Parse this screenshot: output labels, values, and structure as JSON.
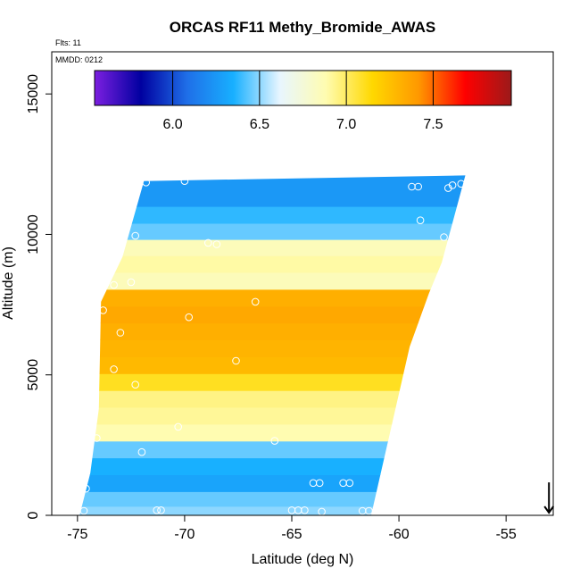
{
  "chart_data": {
    "type": "heatmap",
    "title": "ORCAS RF11 Methy_Bromide_AWAS",
    "annotations": {
      "flights": "Flts: 11",
      "date": "MMDD: 0212"
    },
    "xlabel": "Latitude (deg N)",
    "ylabel": "Altitude (m)",
    "xlim": [
      -76.2,
      -52.8
    ],
    "ylim": [
      0,
      16500
    ],
    "x_ticks": [
      -75,
      -70,
      -65,
      -60,
      -55
    ],
    "x_tick_labels": [
      "-75",
      "-70",
      "-65",
      "-60",
      "-55"
    ],
    "y_ticks": [
      0,
      5000,
      10000,
      15000
    ],
    "y_tick_labels": [
      "0",
      "5000",
      "10000",
      "15000"
    ],
    "colorbar": {
      "min": 5.55,
      "max": 7.95,
      "ticks": [
        6.0,
        6.5,
        7.0,
        7.5
      ],
      "tick_labels": [
        "6.0",
        "6.5",
        "7.0",
        "7.5"
      ],
      "colors": [
        "#7c1fe0",
        "#0000a0",
        "#1f6fe8",
        "#18b0ff",
        "#e8f6ff",
        "#fffcb0",
        "#ffd800",
        "#ff9800",
        "#ff0000",
        "#9c1a1a"
      ]
    },
    "domain_boundary": [
      [
        -74.9,
        0
      ],
      [
        -74.4,
        1500
      ],
      [
        -74.0,
        3800
      ],
      [
        -73.9,
        7600
      ],
      [
        -72.9,
        9200
      ],
      [
        -71.9,
        11900
      ],
      [
        -56.9,
        12100
      ],
      [
        -58.0,
        9000
      ],
      [
        -58.6,
        7900
      ],
      [
        -59.5,
        6000
      ],
      [
        -61.3,
        0
      ]
    ],
    "layers": [
      {
        "z": 11300,
        "v": 6.25
      },
      {
        "z": 10700,
        "v": 6.38
      },
      {
        "z": 10100,
        "v": 6.45
      },
      {
        "z": 9550,
        "v": 6.85
      },
      {
        "z": 8950,
        "v": 6.9
      },
      {
        "z": 8350,
        "v": 6.85
      },
      {
        "z": 7750,
        "v": 7.32
      },
      {
        "z": 7150,
        "v": 7.35
      },
      {
        "z": 6550,
        "v": 7.32
      },
      {
        "z": 5950,
        "v": 7.3
      },
      {
        "z": 5350,
        "v": 7.28
      },
      {
        "z": 4750,
        "v": 7.1
      },
      {
        "z": 4150,
        "v": 6.95
      },
      {
        "z": 3550,
        "v": 6.92
      },
      {
        "z": 2950,
        "v": 6.88
      },
      {
        "z": 2350,
        "v": 6.45
      },
      {
        "z": 1750,
        "v": 6.35
      },
      {
        "z": 1150,
        "v": 6.3
      },
      {
        "z": 550,
        "v": 6.45
      },
      {
        "z": 100,
        "v": 6.5
      }
    ],
    "sample_points": [
      {
        "x": -71.8,
        "y": 11850
      },
      {
        "x": -70.0,
        "y": 11900
      },
      {
        "x": -59.4,
        "y": 11700
      },
      {
        "x": -59.1,
        "y": 11700
      },
      {
        "x": -57.7,
        "y": 11650
      },
      {
        "x": -57.5,
        "y": 11750
      },
      {
        "x": -57.1,
        "y": 11800
      },
      {
        "x": -72.3,
        "y": 9950
      },
      {
        "x": -68.9,
        "y": 9700
      },
      {
        "x": -68.5,
        "y": 9650
      },
      {
        "x": -59.0,
        "y": 10500
      },
      {
        "x": -57.9,
        "y": 9900
      },
      {
        "x": -73.3,
        "y": 8200
      },
      {
        "x": -72.5,
        "y": 8300
      },
      {
        "x": -66.7,
        "y": 7600
      },
      {
        "x": -73.8,
        "y": 7300
      },
      {
        "x": -69.8,
        "y": 7050
      },
      {
        "x": -73.0,
        "y": 6500
      },
      {
        "x": -67.6,
        "y": 5500
      },
      {
        "x": -73.3,
        "y": 5200
      },
      {
        "x": -72.3,
        "y": 4650
      },
      {
        "x": -70.3,
        "y": 3150
      },
      {
        "x": -65.8,
        "y": 2650
      },
      {
        "x": -74.1,
        "y": 2750
      },
      {
        "x": -72.0,
        "y": 2250
      },
      {
        "x": -64.0,
        "y": 1150
      },
      {
        "x": -63.7,
        "y": 1150
      },
      {
        "x": -62.6,
        "y": 1150
      },
      {
        "x": -62.3,
        "y": 1150
      },
      {
        "x": -74.6,
        "y": 950
      },
      {
        "x": -71.3,
        "y": 180
      },
      {
        "x": -71.1,
        "y": 180
      },
      {
        "x": -65.0,
        "y": 180
      },
      {
        "x": -64.7,
        "y": 180
      },
      {
        "x": -64.4,
        "y": 180
      },
      {
        "x": -74.7,
        "y": 160
      },
      {
        "x": -61.7,
        "y": 160
      },
      {
        "x": -61.4,
        "y": 160
      },
      {
        "x": -63.6,
        "y": 130
      }
    ],
    "marker": {
      "x": -53.0,
      "y": 600
    },
    "grid": false
  }
}
